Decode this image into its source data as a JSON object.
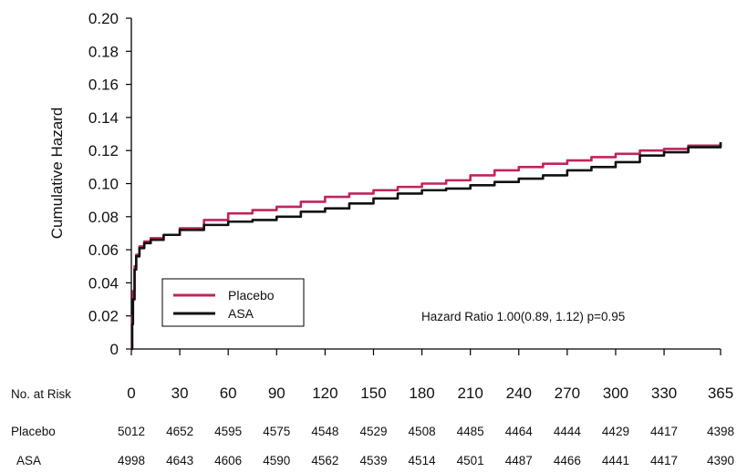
{
  "chart_data": {
    "type": "line",
    "ylabel": "Cumulative Hazard",
    "ylim": [
      0,
      0.2
    ],
    "xlim": [
      0,
      365
    ],
    "y_ticks": [
      "0.20",
      "0.18",
      "0.16",
      "0.14",
      "0.12",
      "0.10",
      "0.08",
      "0.06",
      "0.04",
      "0.02",
      "0"
    ],
    "y_tick_values": [
      0.2,
      0.18,
      0.16,
      0.14,
      0.12,
      0.1,
      0.08,
      0.06,
      0.04,
      0.02,
      0
    ],
    "x_ticks": [
      "0",
      "30",
      "60",
      "90",
      "120",
      "150",
      "180",
      "210",
      "240",
      "270",
      "300",
      "330",
      "365"
    ],
    "x_tick_values": [
      0,
      30,
      60,
      90,
      120,
      150,
      180,
      210,
      240,
      270,
      300,
      330,
      365
    ],
    "legend": {
      "position": "bottom-left"
    },
    "annotation": "Hazard Ratio 1.00(0.89, 1.12) p=0.95",
    "series": [
      {
        "name": "Placebo",
        "color": "#c0245c",
        "points": [
          [
            0,
            0
          ],
          [
            0.5,
            0.02
          ],
          [
            1,
            0.035
          ],
          [
            2,
            0.05
          ],
          [
            3,
            0.057
          ],
          [
            5,
            0.062
          ],
          [
            8,
            0.065
          ],
          [
            12,
            0.067
          ],
          [
            20,
            0.069
          ],
          [
            30,
            0.073
          ],
          [
            45,
            0.078
          ],
          [
            60,
            0.082
          ],
          [
            75,
            0.084
          ],
          [
            90,
            0.086
          ],
          [
            105,
            0.089
          ],
          [
            120,
            0.092
          ],
          [
            135,
            0.094
          ],
          [
            150,
            0.096
          ],
          [
            165,
            0.098
          ],
          [
            180,
            0.1
          ],
          [
            195,
            0.102
          ],
          [
            210,
            0.105
          ],
          [
            225,
            0.108
          ],
          [
            240,
            0.11
          ],
          [
            255,
            0.112
          ],
          [
            270,
            0.114
          ],
          [
            285,
            0.116
          ],
          [
            300,
            0.118
          ],
          [
            315,
            0.12
          ],
          [
            330,
            0.121
          ],
          [
            345,
            0.123
          ],
          [
            365,
            0.125
          ]
        ]
      },
      {
        "name": "ASA",
        "color": "#111111",
        "points": [
          [
            0,
            0
          ],
          [
            0.5,
            0.015
          ],
          [
            1,
            0.03
          ],
          [
            2,
            0.048
          ],
          [
            3,
            0.056
          ],
          [
            5,
            0.061
          ],
          [
            8,
            0.064
          ],
          [
            12,
            0.066
          ],
          [
            20,
            0.069
          ],
          [
            30,
            0.072
          ],
          [
            45,
            0.075
          ],
          [
            60,
            0.077
          ],
          [
            75,
            0.078
          ],
          [
            90,
            0.08
          ],
          [
            105,
            0.083
          ],
          [
            120,
            0.085
          ],
          [
            135,
            0.088
          ],
          [
            150,
            0.091
          ],
          [
            165,
            0.094
          ],
          [
            180,
            0.096
          ],
          [
            195,
            0.097
          ],
          [
            210,
            0.099
          ],
          [
            225,
            0.101
          ],
          [
            240,
            0.103
          ],
          [
            255,
            0.105
          ],
          [
            270,
            0.108
          ],
          [
            285,
            0.11
          ],
          [
            300,
            0.113
          ],
          [
            315,
            0.117
          ],
          [
            330,
            0.119
          ],
          [
            345,
            0.122
          ],
          [
            365,
            0.125
          ]
        ]
      }
    ]
  },
  "risk_table": {
    "header_label": "No. at Risk",
    "rows": [
      {
        "label": "Placebo",
        "values": [
          "5012",
          "4652",
          "4595",
          "4575",
          "4548",
          "4529",
          "4508",
          "4485",
          "4464",
          "4444",
          "4429",
          "4417",
          "4398"
        ]
      },
      {
        "label": "ASA",
        "values": [
          "4998",
          "4643",
          "4606",
          "4590",
          "4562",
          "4539",
          "4514",
          "4501",
          "4487",
          "4466",
          "4441",
          "4417",
          "4390"
        ]
      }
    ]
  }
}
